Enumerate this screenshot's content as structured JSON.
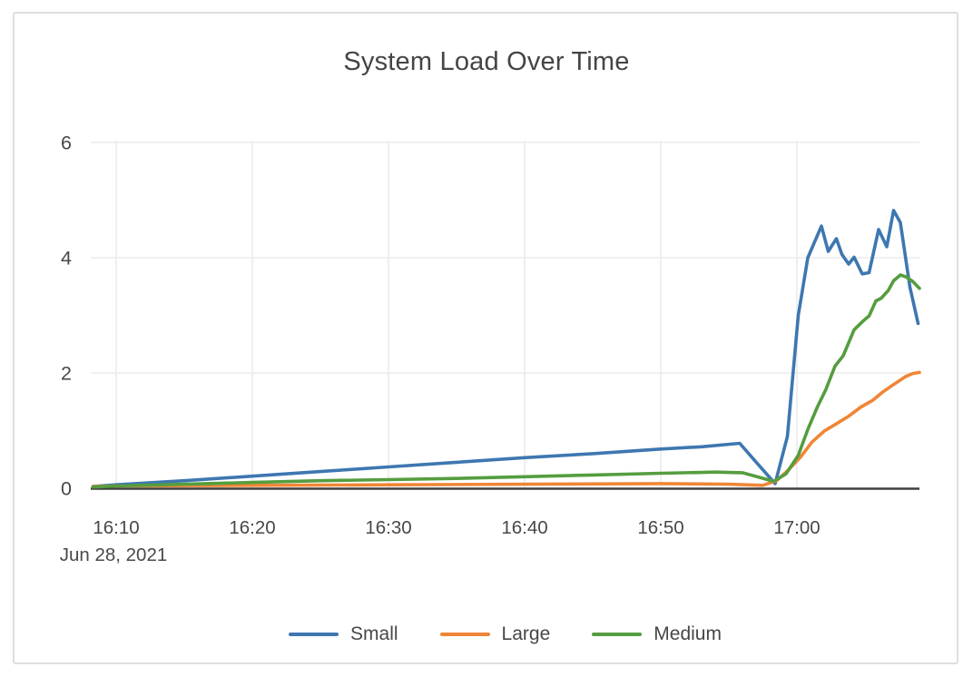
{
  "chart_data": {
    "type": "line",
    "title": "System Load Over Time",
    "x_axis_date_label": "Jun 28, 2021",
    "x_unit": "time of day (HH:MM), minutes encoded as minutes after 16:00",
    "x_range_minutes": [
      8.3,
      69.0
    ],
    "ylim": [
      0,
      6.3
    ],
    "grid": true,
    "legend_position": "bottom-center",
    "x_ticks": [
      {
        "t": 10,
        "label": "16:10"
      },
      {
        "t": 20,
        "label": "16:20"
      },
      {
        "t": 30,
        "label": "16:30"
      },
      {
        "t": 40,
        "label": "16:40"
      },
      {
        "t": 50,
        "label": "16:50"
      },
      {
        "t": 60,
        "label": "17:00"
      }
    ],
    "y_ticks": [
      0,
      2,
      4,
      6
    ],
    "series": [
      {
        "name": "Small",
        "color": "#3e77b1",
        "points": [
          [
            8.3,
            0.03
          ],
          [
            10,
            0.06
          ],
          [
            15,
            0.13
          ],
          [
            20,
            0.21
          ],
          [
            25,
            0.29
          ],
          [
            30,
            0.37
          ],
          [
            35,
            0.45
          ],
          [
            40,
            0.53
          ],
          [
            45,
            0.6
          ],
          [
            50,
            0.68
          ],
          [
            53,
            0.72
          ],
          [
            55.8,
            0.78
          ],
          [
            57.2,
            0.4
          ],
          [
            58.4,
            0.08
          ],
          [
            59.3,
            0.9
          ],
          [
            60.1,
            3.0
          ],
          [
            60.8,
            4.0
          ],
          [
            61.8,
            4.55
          ],
          [
            62.3,
            4.11
          ],
          [
            62.9,
            4.33
          ],
          [
            63.3,
            4.06
          ],
          [
            63.8,
            3.89
          ],
          [
            64.2,
            4.01
          ],
          [
            64.8,
            3.72
          ],
          [
            65.3,
            3.74
          ],
          [
            66.0,
            4.49
          ],
          [
            66.6,
            4.19
          ],
          [
            67.1,
            4.82
          ],
          [
            67.6,
            4.61
          ],
          [
            68.3,
            3.49
          ],
          [
            68.9,
            2.86
          ]
        ]
      },
      {
        "name": "Large",
        "color": "#ef8636",
        "points": [
          [
            8.3,
            0.03
          ],
          [
            10,
            0.04
          ],
          [
            20,
            0.05
          ],
          [
            30,
            0.06
          ],
          [
            40,
            0.07
          ],
          [
            50,
            0.08
          ],
          [
            55,
            0.07
          ],
          [
            57.5,
            0.05
          ],
          [
            58.5,
            0.13
          ],
          [
            59.3,
            0.3
          ],
          [
            60.3,
            0.55
          ],
          [
            61.1,
            0.8
          ],
          [
            62.0,
            0.99
          ],
          [
            62.9,
            1.12
          ],
          [
            63.8,
            1.25
          ],
          [
            64.7,
            1.41
          ],
          [
            65.6,
            1.53
          ],
          [
            66.3,
            1.67
          ],
          [
            67.1,
            1.8
          ],
          [
            68.0,
            1.94
          ],
          [
            68.5,
            1.99
          ],
          [
            69.0,
            2.01
          ]
        ]
      },
      {
        "name": "Medium",
        "color": "#559d3f",
        "points": [
          [
            8.3,
            0.02
          ],
          [
            10,
            0.04
          ],
          [
            15,
            0.07
          ],
          [
            20,
            0.1
          ],
          [
            25,
            0.13
          ],
          [
            30,
            0.15
          ],
          [
            35,
            0.17
          ],
          [
            40,
            0.2
          ],
          [
            45,
            0.23
          ],
          [
            50,
            0.26
          ],
          [
            54,
            0.28
          ],
          [
            56,
            0.27
          ],
          [
            58.3,
            0.12
          ],
          [
            59.2,
            0.25
          ],
          [
            60.1,
            0.57
          ],
          [
            60.8,
            1.02
          ],
          [
            61.5,
            1.41
          ],
          [
            62.1,
            1.7
          ],
          [
            62.8,
            2.12
          ],
          [
            63.4,
            2.3
          ],
          [
            64.2,
            2.75
          ],
          [
            64.9,
            2.91
          ],
          [
            65.3,
            2.99
          ],
          [
            65.8,
            3.25
          ],
          [
            66.2,
            3.3
          ],
          [
            66.7,
            3.43
          ],
          [
            67.1,
            3.6
          ],
          [
            67.6,
            3.7
          ],
          [
            68.0,
            3.67
          ],
          [
            68.5,
            3.59
          ],
          [
            69.0,
            3.47
          ]
        ]
      }
    ]
  }
}
